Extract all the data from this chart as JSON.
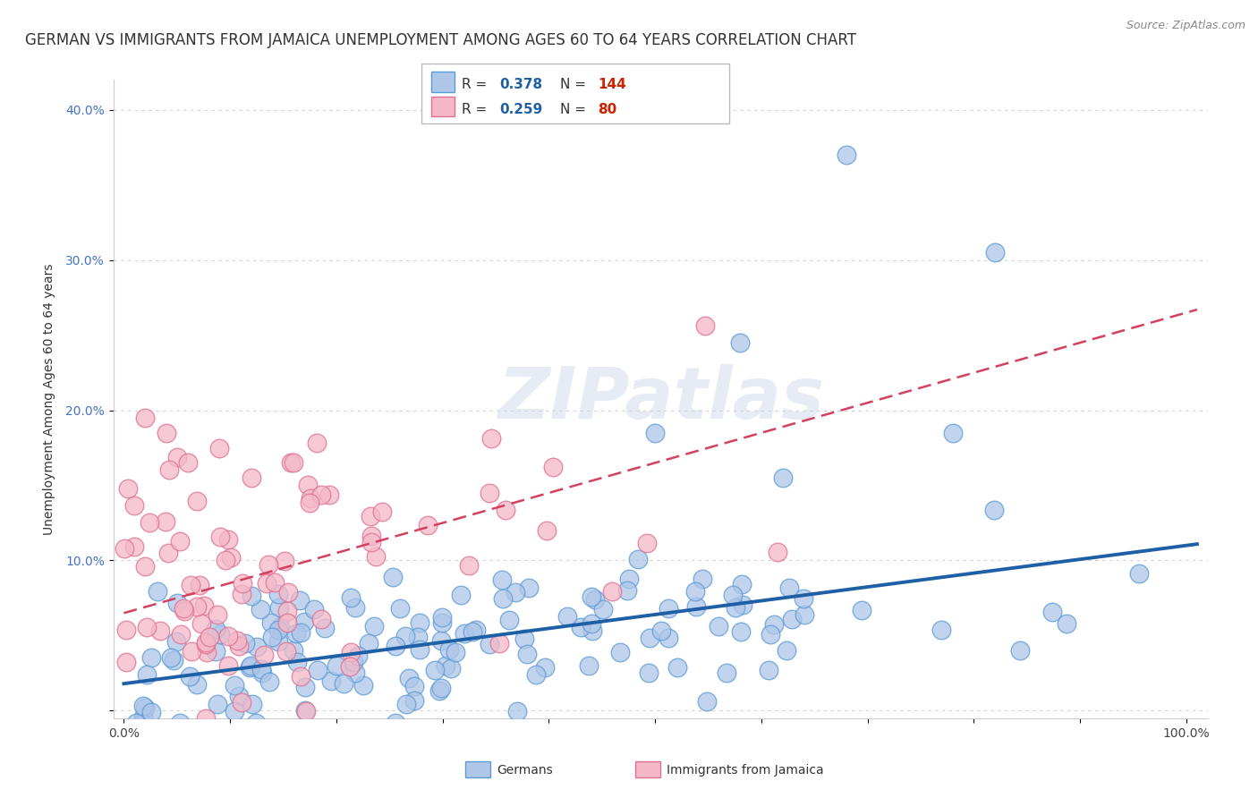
{
  "title": "GERMAN VS IMMIGRANTS FROM JAMAICA UNEMPLOYMENT AMONG AGES 60 TO 64 YEARS CORRELATION CHART",
  "source": "Source: ZipAtlas.com",
  "ylabel": "Unemployment Among Ages 60 to 64 years",
  "xlabel": "",
  "xlim": [
    -0.01,
    1.02
  ],
  "ylim": [
    -0.005,
    0.42
  ],
  "xticks": [
    0.0,
    0.1,
    0.2,
    0.3,
    0.4,
    0.5,
    0.6,
    0.7,
    0.8,
    0.9,
    1.0
  ],
  "xticklabels": [
    "0.0%",
    "",
    "",
    "",
    "",
    "",
    "",
    "",
    "",
    "",
    "100.0%"
  ],
  "yticks": [
    0.0,
    0.1,
    0.2,
    0.3,
    0.4
  ],
  "yticklabels": [
    "",
    "10.0%",
    "20.0%",
    "30.0%",
    "40.0%"
  ],
  "german_color": "#aec6e8",
  "german_edge_color": "#5b9bd5",
  "german_line_color": "#1f5fa6",
  "jamaica_color": "#f4b8c8",
  "jamaica_edge_color": "#e07090",
  "jamaica_line_color": "#d44060",
  "german_R": 0.378,
  "german_N": 144,
  "jamaica_R": 0.259,
  "jamaica_N": 80,
  "watermark": "ZIPatlas",
  "background_color": "#ffffff",
  "grid_color": "#d0d0d0",
  "title_fontsize": 12,
  "axis_fontsize": 10,
  "tick_fontsize": 10,
  "legend_R_color": "#1f5fa6",
  "legend_N_color": "#cc2200"
}
